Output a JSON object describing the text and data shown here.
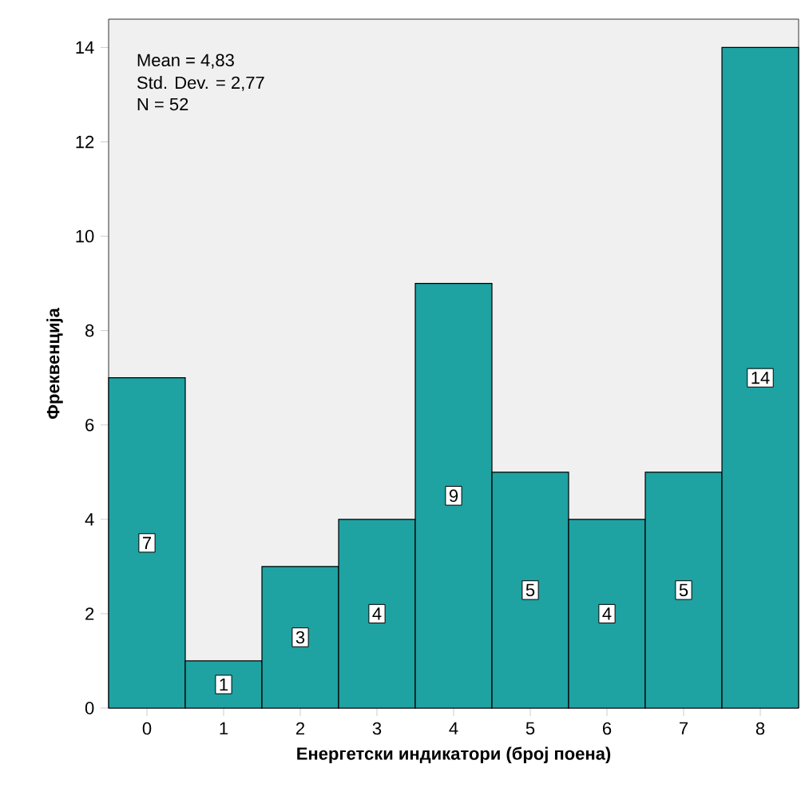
{
  "chart_data": {
    "type": "histogram",
    "xlabel": "Енергетски индикатори (број поена)",
    "ylabel": "Фреквенција",
    "bins": [
      -0.5,
      0.5,
      1.5,
      2.5,
      3.5,
      4.5,
      5.5,
      6.5,
      7.5,
      8.5
    ],
    "values": [
      7,
      1,
      3,
      4,
      9,
      5,
      4,
      5,
      14
    ],
    "color": "#1fa2a2",
    "xlim": [
      -0.5,
      8.5
    ],
    "xticks": [
      0,
      1,
      2,
      3,
      4,
      5,
      6,
      7,
      8
    ],
    "ylim": [
      0,
      14.6
    ],
    "yticks": [
      0,
      2,
      4,
      6,
      8,
      10,
      12,
      14
    ],
    "data_labels": true,
    "grid": false,
    "annotations": [
      "Mean = 4,83",
      "Std. Dev. = 2,77",
      "N = 52"
    ]
  }
}
